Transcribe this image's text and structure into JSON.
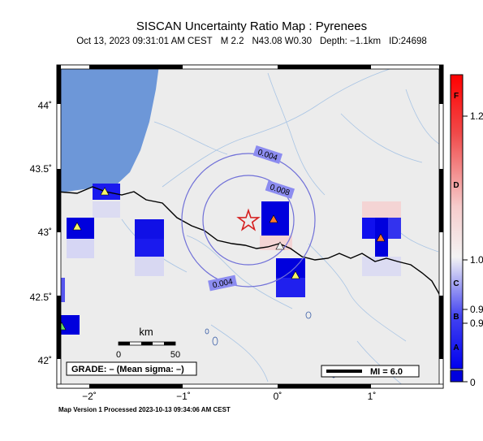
{
  "header": {
    "title": "SISCAN Uncertainty Ratio Map : Pyrenees",
    "datetime": "Oct 13, 2023 09:31:01 AM CEST",
    "magnitude": "M 2.2",
    "location": "N43.08 W0.30",
    "depth": "Depth: −1.1km",
    "event_id": "ID:24698"
  },
  "map": {
    "lat_ticks": [
      "44˚",
      "43.5˚",
      "43˚",
      "42.5˚",
      "42˚"
    ],
    "lon_ticks": [
      "−2˚",
      "−1˚",
      "0˚",
      "1˚"
    ],
    "contours": [
      {
        "label": "0.004"
      },
      {
        "label": "0.008"
      },
      {
        "label": "0.004"
      }
    ],
    "scalebar": {
      "unit": "km",
      "ticks": [
        "0",
        "50"
      ]
    },
    "grade_box": "GRADE: – (Mean sigma: –)",
    "mi_legend": "MI = 6.0",
    "colors": {
      "land": "#ececec",
      "sea": "#6d97d8",
      "rivers": "#a8c4e4",
      "cell_high": "#0000dd",
      "epicenter": "#d62020"
    }
  },
  "colorbar": {
    "grades": [
      "F",
      "D",
      "C",
      "B",
      "A"
    ],
    "values": [
      "1.2",
      "1.0",
      "0.9",
      "0.9",
      "0"
    ]
  },
  "footer": "Map Version 1 Processed 2023-10-13 09:34:06 AM CEST"
}
